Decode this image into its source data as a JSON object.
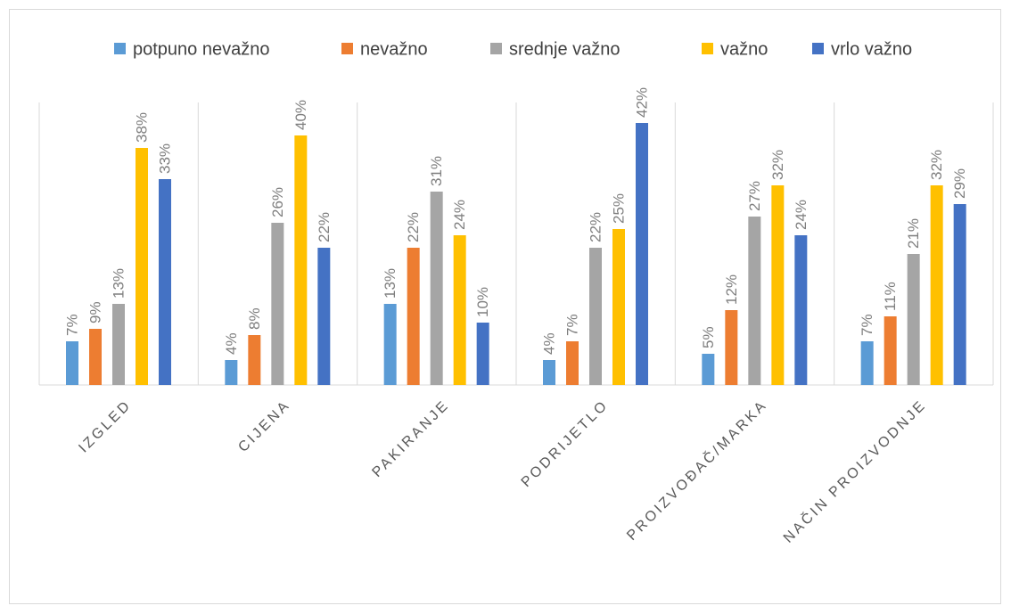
{
  "chart_data": {
    "type": "bar",
    "categories": [
      "IZGLED",
      "CIJENA",
      "PAKIRANJE",
      "PODRIJETLO",
      "PROIZVOĐAČ/MARKA",
      "NAČIN PROIZVODNJE"
    ],
    "series": [
      {
        "name": "potpuno nevažno",
        "color": "#5b9bd5",
        "values": [
          7,
          4,
          13,
          4,
          5,
          7
        ],
        "value_labels": [
          "7%",
          "4%",
          "13%",
          "4%",
          "5%",
          "7%"
        ]
      },
      {
        "name": "nevažno",
        "color": "#ed7d31",
        "values": [
          9,
          8,
          22,
          7,
          12,
          11
        ],
        "value_labels": [
          "9%",
          "8%",
          "22%",
          "7%",
          "12%",
          "11%"
        ]
      },
      {
        "name": "srednje važno",
        "color": "#a5a5a5",
        "values": [
          13,
          26,
          31,
          22,
          27,
          21
        ],
        "value_labels": [
          "13%",
          "26%",
          "31%",
          "22%",
          "27%",
          "21%"
        ]
      },
      {
        "name": "važno",
        "color": "#ffc000",
        "values": [
          38,
          40,
          24,
          25,
          32,
          32
        ],
        "value_labels": [
          "38%",
          "40%",
          "24%",
          "25%",
          "32%",
          "32%"
        ]
      },
      {
        "name": "vrlo važno",
        "color": "#4472c4",
        "values": [
          33,
          22,
          10,
          42,
          24,
          29
        ],
        "value_labels": [
          "33%",
          "22%",
          "10%",
          "42%",
          "24%",
          "29%"
        ]
      }
    ]
  }
}
